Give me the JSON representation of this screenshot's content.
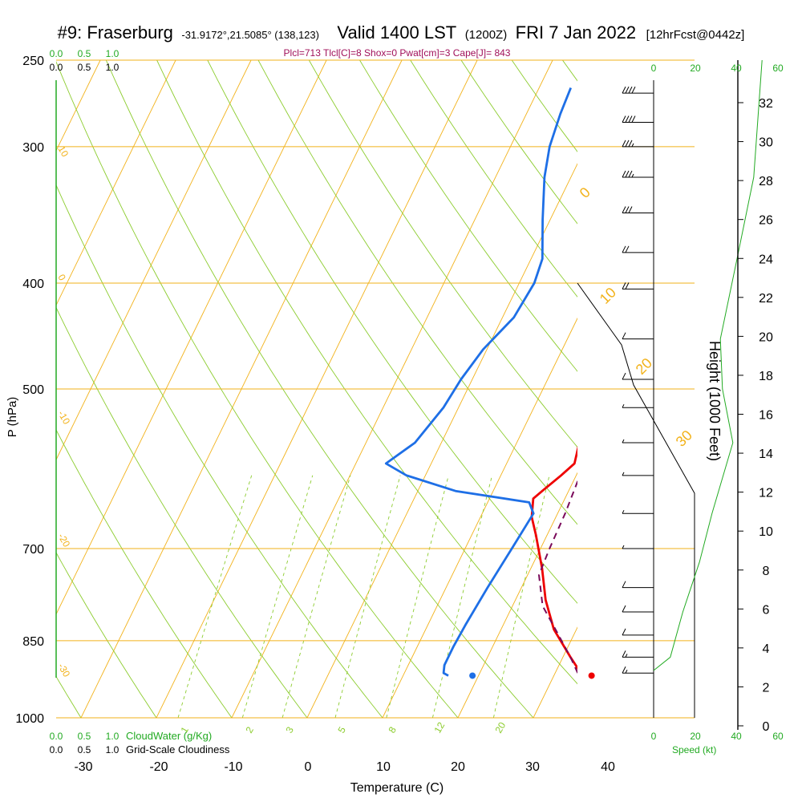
{
  "chart_data": {
    "type": "line",
    "title": {
      "station": "#9: Fraserburg",
      "coords": "-31.9172°,21.5085° (138,123)",
      "valid": "Valid 1400 LST",
      "utc": "(1200Z)",
      "date": "FRI 7 Jan 2022",
      "fcst": "[12hrFcst@0442z]"
    },
    "subtitle": "Plcl=713 Tlcl[C]=8 Shox=0 Pwat[cm]=3 Cape[J]= 843",
    "xlabel": "Temperature (C)",
    "ylabel": "P (hPa)",
    "y2label": "Height (1000 Feet)",
    "xlim": [
      -33,
      45
    ],
    "x_ticks": [
      "-30",
      "-20",
      "-10",
      "0",
      "10",
      "20",
      "30",
      "40"
    ],
    "pressure_ticks": [
      "250",
      "300",
      "400",
      "500",
      "700",
      "850",
      "1000"
    ],
    "height_ticks": [
      "0",
      "2",
      "4",
      "6",
      "8",
      "10",
      "12",
      "14",
      "16",
      "18",
      "20",
      "22",
      "24",
      "26",
      "28",
      "30",
      "32"
    ],
    "mixing_ratio_labels": [
      "1",
      "2",
      "3",
      "5",
      "8",
      "12",
      "20"
    ],
    "dry_adiabat_labels": [
      "0",
      "10",
      "20",
      "30"
    ],
    "isotherm_labels": [
      "10",
      "0",
      "-10",
      "-20",
      "-30"
    ],
    "cloud_scale": {
      "cloudwater_ticks": [
        "0.0",
        "0.5",
        "1.0"
      ],
      "cloudwater_label": "CloudWater (g/Kg)",
      "cloudiness_ticks": [
        "0.0",
        "0.5",
        "1.0"
      ],
      "cloudiness_label": "Grid-Scale Cloudiness"
    },
    "speed_scale": {
      "ticks": [
        "0",
        "20",
        "40",
        "60"
      ],
      "label": "Speed (kt)"
    },
    "series": [
      {
        "name": "temperature",
        "color": "#ee0000",
        "points": [
          [
            33.8,
            915
          ],
          [
            31,
            880
          ],
          [
            27,
            830
          ],
          [
            24,
            780
          ],
          [
            21.5,
            730
          ],
          [
            18.5,
            680
          ],
          [
            16.8,
            655
          ],
          [
            15.8,
            630
          ],
          [
            16.5,
            620
          ],
          [
            18,
            600
          ],
          [
            19,
            585
          ],
          [
            18.3,
            560
          ],
          [
            16.7,
            520
          ],
          [
            15,
            480
          ],
          [
            13,
            440
          ],
          [
            11.2,
            400
          ],
          [
            9.5,
            370
          ],
          [
            6.5,
            340
          ],
          [
            3.5,
            310
          ],
          [
            1,
            285
          ],
          [
            -0.5,
            265
          ]
        ]
      },
      {
        "name": "dewpoint",
        "color": "#1e6fe6",
        "points": [
          [
            16,
            915
          ],
          [
            15.2,
            910
          ],
          [
            14.8,
            895
          ],
          [
            14.8,
            860
          ],
          [
            15,
            820
          ],
          [
            15.5,
            760
          ],
          [
            16.2,
            700
          ],
          [
            16.8,
            650
          ],
          [
            15.5,
            635
          ],
          [
            5,
            620
          ],
          [
            -2.5,
            600
          ],
          [
            -6,
            585
          ],
          [
            -3.5,
            560
          ],
          [
            -2,
            520
          ],
          [
            -1.5,
            490
          ],
          [
            -0.5,
            460
          ],
          [
            1.5,
            430
          ],
          [
            2,
            400
          ],
          [
            1.5,
            380
          ],
          [
            -1,
            350
          ],
          [
            -3.5,
            320
          ],
          [
            -4.8,
            300
          ],
          [
            -5.5,
            280
          ],
          [
            -5.8,
            265
          ]
        ]
      },
      {
        "name": "parcel",
        "color": "#7a0a5a",
        "points": [
          [
            33,
            910
          ],
          [
            31,
            880
          ],
          [
            28,
            840
          ],
          [
            24,
            790
          ],
          [
            21.5,
            740
          ],
          [
            21.2,
            700
          ],
          [
            21,
            650
          ],
          [
            20.5,
            600
          ],
          [
            19.5,
            550
          ],
          [
            18,
            500
          ],
          [
            16.5,
            450
          ],
          [
            14.5,
            400
          ],
          [
            12.5,
            360
          ],
          [
            9.8,
            320
          ],
          [
            6.5,
            290
          ],
          [
            3.5,
            265
          ]
        ]
      }
    ],
    "surface_markers": [
      {
        "name": "surface-temperature",
        "x": 35,
        "p": 915,
        "color": "#ee0000"
      },
      {
        "name": "surface-dewpoint",
        "x": 19.2,
        "p": 915,
        "color": "#1e6fe6"
      }
    ],
    "wind_barbs": [
      {
        "p": 268,
        "speed": 40
      },
      {
        "p": 285,
        "speed": 40
      },
      {
        "p": 300,
        "speed": 35
      },
      {
        "p": 320,
        "speed": 35
      },
      {
        "p": 345,
        "speed": 30
      },
      {
        "p": 375,
        "speed": 20
      },
      {
        "p": 405,
        "speed": 20
      },
      {
        "p": 450,
        "speed": 10
      },
      {
        "p": 490,
        "speed": 10
      },
      {
        "p": 520,
        "speed": 5
      },
      {
        "p": 560,
        "speed": 5
      },
      {
        "p": 600,
        "speed": 5
      },
      {
        "p": 650,
        "speed": 5
      },
      {
        "p": 700,
        "speed": 5
      },
      {
        "p": 760,
        "speed": 10
      },
      {
        "p": 800,
        "speed": 10
      },
      {
        "p": 840,
        "speed": 10
      },
      {
        "p": 880,
        "speed": 15
      },
      {
        "p": 910,
        "speed": 15
      }
    ],
    "wind_speed_profile": [
      [
        0,
        905
      ],
      [
        8,
        880
      ],
      [
        14,
        800
      ],
      [
        22,
        720
      ],
      [
        28,
        650
      ],
      [
        38,
        560
      ],
      [
        33,
        500
      ],
      [
        32,
        450
      ],
      [
        40,
        380
      ],
      [
        48,
        320
      ],
      [
        52,
        250
      ]
    ],
    "grid": true,
    "legend": "none"
  }
}
